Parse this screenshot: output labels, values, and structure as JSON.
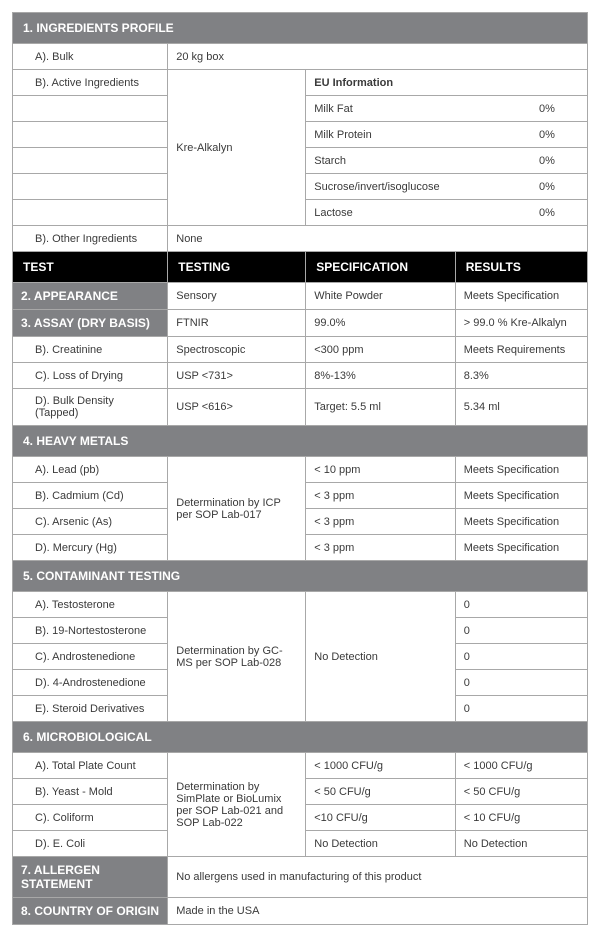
{
  "colors": {
    "section_bg": "#808184",
    "black_bg": "#000000",
    "border": "#a8a8a8",
    "text": "#3a3a3a"
  },
  "sections": {
    "s1": {
      "title": "1. INGREDIENTS PROFILE"
    },
    "s2": {
      "title": "2. APPEARANCE"
    },
    "s3": {
      "title": "3. ASSAY (DRY BASIS)"
    },
    "s4": {
      "title": "4. HEAVY METALS"
    },
    "s5": {
      "title": "5. CONTAMINANT TESTING"
    },
    "s6": {
      "title": "6. MICROBIOLOGICAL"
    },
    "s7": {
      "title": "7. ALLERGEN STATEMENT"
    },
    "s8": {
      "title": "8. COUNTRY OF ORIGIN"
    }
  },
  "ingredients": {
    "bulk_label": "A). Bulk",
    "bulk_value": "20 kg box",
    "active_label": "B). Active Ingredients",
    "active_value": "Kre-Alkalyn",
    "other_label": "B). Other Ingredients",
    "other_value": "None",
    "eu_header": "EU Information",
    "eu_rows": [
      {
        "label": "Milk Fat",
        "value": "0%"
      },
      {
        "label": "Milk Protein",
        "value": "0%"
      },
      {
        "label": "Starch",
        "value": "0%"
      },
      {
        "label": "Sucrose/invert/isoglucose",
        "value": "0%"
      },
      {
        "label": "Lactose",
        "value": "0%"
      }
    ]
  },
  "test_header": {
    "c1": "TEST",
    "c2": "TESTING",
    "c3": "SPECIFICATION",
    "c4": "RESULTS"
  },
  "appearance": {
    "testing": "Sensory",
    "spec": "White Powder",
    "result": "Meets Specification"
  },
  "assay": {
    "testing": "FTNIR",
    "spec": "99.0%",
    "result": "> 99.0 % Kre-Alkalyn",
    "rows": [
      {
        "label": "B). Creatinine",
        "testing": "Spectroscopic",
        "spec": "<300 ppm",
        "result": "Meets Requirements"
      },
      {
        "label": "C). Loss of Drying",
        "testing": "USP <731>",
        "spec": "8%-13%",
        "result": "8.3%"
      },
      {
        "label": "D). Bulk Density (Tapped)",
        "testing": "USP <616>",
        "spec": "Target: 5.5 ml",
        "result": "5.34 ml"
      }
    ]
  },
  "heavy_metals": {
    "method": "Determination by ICP per SOP Lab-017",
    "rows": [
      {
        "label": "A). Lead (pb)",
        "spec": "< 10 ppm",
        "result": "Meets Specification"
      },
      {
        "label": "B). Cadmium (Cd)",
        "spec": "< 3 ppm",
        "result": "Meets Specification"
      },
      {
        "label": "C). Arsenic (As)",
        "spec": "< 3 ppm",
        "result": "Meets Specification"
      },
      {
        "label": "D). Mercury (Hg)",
        "spec": "< 3 ppm",
        "result": "Meets Specification"
      }
    ]
  },
  "contaminant": {
    "method": "Determination by GC-MS per SOP Lab-028",
    "spec": "No Detection",
    "rows": [
      {
        "label": "A). Testosterone",
        "result": "0"
      },
      {
        "label": "B). 19-Nortestosterone",
        "result": "0"
      },
      {
        "label": "C). Androstenedione",
        "result": "0"
      },
      {
        "label": "D). 4-Androstenedione",
        "result": "0"
      },
      {
        "label": "E). Steroid Derivatives",
        "result": "0"
      }
    ]
  },
  "micro": {
    "method": "Determination by SimPlate or BioLumix per SOP Lab-021 and SOP Lab-022",
    "rows": [
      {
        "label": "A). Total Plate Count",
        "spec": "< 1000 CFU/g",
        "result": "< 1000 CFU/g"
      },
      {
        "label": "B). Yeast - Mold",
        "spec": "< 50 CFU/g",
        "result": "< 50 CFU/g"
      },
      {
        "label": "C). Coliform",
        "spec": "<10 CFU/g",
        "result": "< 10 CFU/g"
      },
      {
        "label": "D). E. Coli",
        "spec": "No Detection",
        "result": "No Detection"
      }
    ]
  },
  "allergen": "No allergens used in manufacturing of this product",
  "origin": "Made in the USA"
}
